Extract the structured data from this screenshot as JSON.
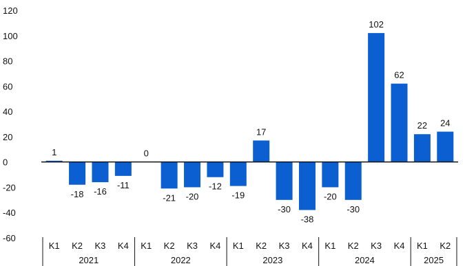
{
  "chart_data": {
    "type": "bar",
    "title": "",
    "xlabel": "",
    "ylabel": "",
    "ylim": [
      -60,
      120
    ],
    "yticks": [
      120,
      100,
      80,
      60,
      40,
      20,
      0,
      -20,
      -40,
      -60
    ],
    "grid": false,
    "legend": "none",
    "bar_color": "#0b5fd1",
    "categories": [
      "K1",
      "K2",
      "K3",
      "K4",
      "K1",
      "K2",
      "K3",
      "K4",
      "K1",
      "K2",
      "K3",
      "K4",
      "K1",
      "K2",
      "K3",
      "K4",
      "K1",
      "K2"
    ],
    "groups": [
      {
        "label": "2021",
        "count": 4
      },
      {
        "label": "2022",
        "count": 4
      },
      {
        "label": "2023",
        "count": 4
      },
      {
        "label": "2024",
        "count": 4
      },
      {
        "label": "2025",
        "count": 2
      }
    ],
    "values": [
      1,
      -18,
      -16,
      -11,
      0,
      -21,
      -20,
      -12,
      -19,
      17,
      -30,
      -38,
      -20,
      -30,
      102,
      62,
      22,
      24
    ]
  }
}
